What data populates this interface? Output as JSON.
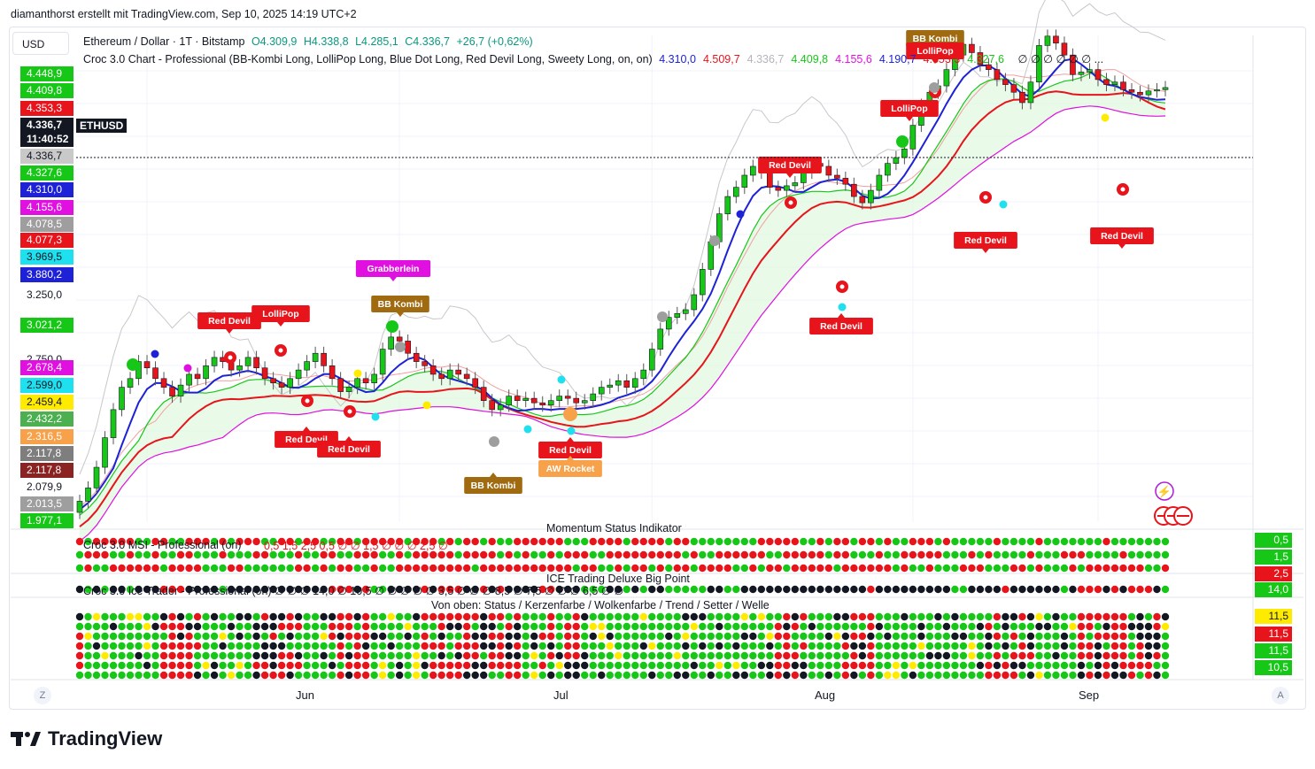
{
  "header": {
    "credit": "diamanthorst erstellt mit TradingView.com, Sep 10, 2025 14:19 UTC+2"
  },
  "currency": "USD",
  "legend": {
    "symbol": "Ethereum / Dollar · 1T · Bitstamp",
    "open": "O4.309,9",
    "high": "H4.338,8",
    "low": "L4.285,1",
    "close": "C4.336,7",
    "change": "+26,7 (+0,62%)",
    "indicator": "Croc 3.0 Chart - Professional (BB-Kombi Long, LolliPop Long, Blue Dot Long, Red Devil Long, Sweety Long, on, on)",
    "values": [
      {
        "text": "4.310,0",
        "color": "#1e22d6"
      },
      {
        "text": "4.509,7",
        "color": "#e8141b"
      },
      {
        "text": "4.336,7",
        "color": "#b2b5be"
      },
      {
        "text": "4.409,8",
        "color": "#17c717"
      },
      {
        "text": "4.155,6",
        "color": "#e010e0"
      },
      {
        "text": "4.190,7",
        "color": "#1e22d6"
      },
      {
        "text": "4.353,3",
        "color": "#e8141b"
      },
      {
        "text": "4.327,6",
        "color": "#17c717"
      }
    ],
    "trailing": "∅ ∅ ∅ ∅ ∅ ∅ ..."
  },
  "price_labels": [
    {
      "text": "4.448,9",
      "bg": "#17c717"
    },
    {
      "text": "4.409,8",
      "bg": "#17c717"
    },
    {
      "text": "4.353,3",
      "bg": "#e8141b"
    },
    {
      "text": "4.336,7",
      "bg": "#131722"
    },
    {
      "text": "11:40:52",
      "bg": "#131722"
    },
    {
      "text": "4.336,7",
      "bg": "#c9c9c9"
    },
    {
      "text": "4.327,6",
      "bg": "#17c717"
    },
    {
      "text": "4.310,0",
      "bg": "#1e22d6"
    },
    {
      "text": "4.155,6",
      "bg": "#e010e0"
    },
    {
      "text": "4.078,5",
      "bg": "#9e9e9e"
    },
    {
      "text": "4.077,3",
      "bg": "#e8141b"
    },
    {
      "text": "3.969,5",
      "bg": "#1fe0ef"
    },
    {
      "text": "3.880,2",
      "bg": "#1e22d6"
    },
    {
      "text": "3.250,0",
      "bg": ""
    },
    {
      "text": "3.021,2",
      "bg": "#17c717"
    },
    {
      "text": "2.750,0",
      "bg": ""
    },
    {
      "text": "2.678,4",
      "bg": "#e010e0"
    },
    {
      "text": "2.599,0",
      "bg": "#1fe0ef"
    },
    {
      "text": "2.459,4",
      "bg": "#ffeb00"
    },
    {
      "text": "2.432,2",
      "bg": "#4caf50"
    },
    {
      "text": "2.316,5",
      "bg": "#f7a24b"
    },
    {
      "text": "2.117,8",
      "bg": "#7e7e7e"
    },
    {
      "text": "2.117,8",
      "bg": "#8b2323"
    },
    {
      "text": "2.079,9",
      "bg": ""
    },
    {
      "text": "2.013,5",
      "bg": "#9e9e9e"
    },
    {
      "text": "1.977,1",
      "bg": "#17c717"
    }
  ],
  "symbol_tag": "ETHUSD",
  "chart_data": {
    "type": "candlestick",
    "title": "Ethereum / Dollar · 1T · Bitstamp",
    "x_ticks": [
      "Jun",
      "Jul",
      "Aug",
      "Sep"
    ],
    "y_ticks": [
      "3.250,0",
      "2.750,0",
      "2.079,9"
    ],
    "close": [
      2050,
      2100,
      2180,
      2300,
      2420,
      2520,
      2560,
      2640,
      2610,
      2560,
      2520,
      2480,
      2530,
      2580,
      2560,
      2620,
      2660,
      2640,
      2600,
      2620,
      2660,
      2610,
      2560,
      2540,
      2520,
      2560,
      2600,
      2640,
      2680,
      2620,
      2560,
      2500,
      2520,
      2560,
      2540,
      2580,
      2700,
      2760,
      2740,
      2680,
      2640,
      2620,
      2580,
      2560,
      2600,
      2580,
      2560,
      2520,
      2460,
      2420,
      2440,
      2480,
      2460,
      2470,
      2450,
      2440,
      2460,
      2480,
      2470,
      2450,
      2460,
      2490,
      2520,
      2530,
      2550,
      2520,
      2560,
      2600,
      2700,
      2800,
      2860,
      2880,
      2900,
      2980,
      3120,
      3280,
      3450,
      3560,
      3620,
      3700,
      3760,
      3720,
      3620,
      3600,
      3630,
      3650,
      3720,
      3780,
      3760,
      3700,
      3680,
      3640,
      3560,
      3520,
      3600,
      3700,
      3780,
      3820,
      3880,
      4050,
      4200,
      4300,
      4350,
      4480,
      4600,
      4690,
      4620,
      4520,
      4480,
      4400,
      4360,
      4300,
      4220,
      4380,
      4680,
      4760,
      4700,
      4600,
      4440,
      4460,
      4480,
      4400,
      4360,
      4380,
      4320,
      4300,
      4280,
      4310,
      4320,
      4336.7
    ],
    "annotations": [
      {
        "text": "Red Devil"
      },
      {
        "text": "LolliPop"
      },
      {
        "text": "Grabberlein"
      },
      {
        "text": "BB Kombi"
      },
      {
        "text": "Red Devil"
      },
      {
        "text": "Red Devil"
      },
      {
        "text": "BB Kombi"
      },
      {
        "text": "Red Devil"
      },
      {
        "text": "AW Rocket"
      },
      {
        "text": "Red Devil"
      },
      {
        "text": "Red Devil"
      },
      {
        "text": "LolliPop"
      },
      {
        "text": "BB Kombi"
      },
      {
        "text": "LolliPop"
      },
      {
        "text": "Red Devil"
      },
      {
        "text": "Red Devil"
      }
    ]
  },
  "panels": {
    "momentum_title": "Momentum Status Indikator",
    "msi_title": "Croc 3.0 MSI - Professional (on)",
    "msi_values": "0,5   1,5   2,5   0,5   ∅   ∅   1,5   ∅   ∅   ∅   2,5   ∅",
    "ice_title": "ICE Trading Deluxe Big Point",
    "ice_sub": "Croc 3.0 Ice Trader - Professional (on)   ∅   ∅   ∅   14,0   ∅   10,5   ∅   ∅   ∅   ∅   ∅   3,5   ∅   ∅   ∅   8,5   ∅   7,5   ∅   ∅   ∅   6,5   ∅   ∅",
    "bottom_title": "Von oben: Status / Kerzenfarbe / Wolkenfarbe / Trend / Setter / Welle"
  },
  "right_labels": [
    {
      "text": "0,5",
      "bg": "#17c717"
    },
    {
      "text": "1,5",
      "bg": "#17c717"
    },
    {
      "text": "2,5",
      "bg": "#e8141b"
    },
    {
      "text": "14,0",
      "bg": "#17c717"
    },
    {
      "text": "11,5",
      "bg": "#ffeb00"
    },
    {
      "text": "11,5",
      "bg": "#e8141b"
    },
    {
      "text": "11,5",
      "bg": "#17c717"
    },
    {
      "text": "10,5",
      "bg": "#17c717"
    }
  ],
  "footer": {
    "brand": "TradingView",
    "left_btn": "Z",
    "right_btn": "A"
  }
}
